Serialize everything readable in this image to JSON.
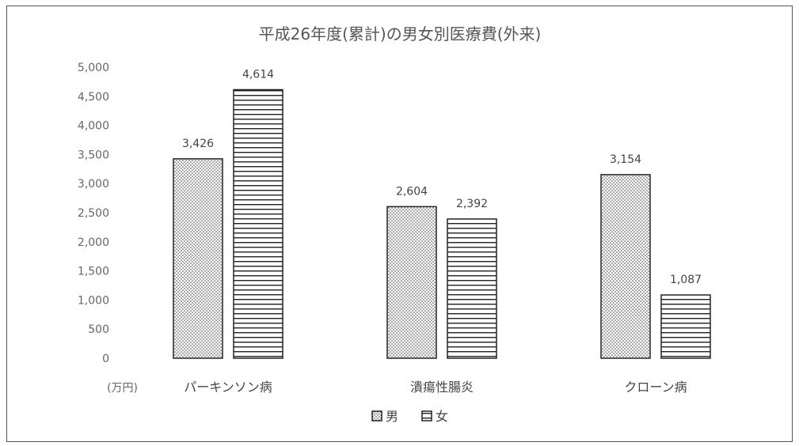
{
  "chart_data": {
    "type": "bar",
    "title": "平成26年度(累計)の男女別医療費(外来)",
    "unit_label": "(万円)",
    "categories": [
      "パーキンソン病",
      "潰瘍性腸炎",
      "クローン病"
    ],
    "series": [
      {
        "name": "男",
        "values": [
          3426,
          2604,
          3154
        ]
      },
      {
        "name": "女",
        "values": [
          4614,
          2392,
          1087
        ]
      }
    ],
    "value_labels": [
      [
        "3,426",
        "2,604",
        "3,154"
      ],
      [
        "4,614",
        "2,392",
        "1,087"
      ]
    ],
    "y_ticks": [
      0,
      500,
      1000,
      1500,
      2000,
      2500,
      3000,
      3500,
      4000,
      4500,
      5000
    ],
    "y_tick_labels": [
      "0",
      "500",
      "1,000",
      "1,500",
      "2,000",
      "2,500",
      "3,000",
      "3,500",
      "4,000",
      "4,500",
      "5,000"
    ],
    "ylim": [
      0,
      5000
    ],
    "grid": false,
    "legend_position": "bottom-center"
  }
}
